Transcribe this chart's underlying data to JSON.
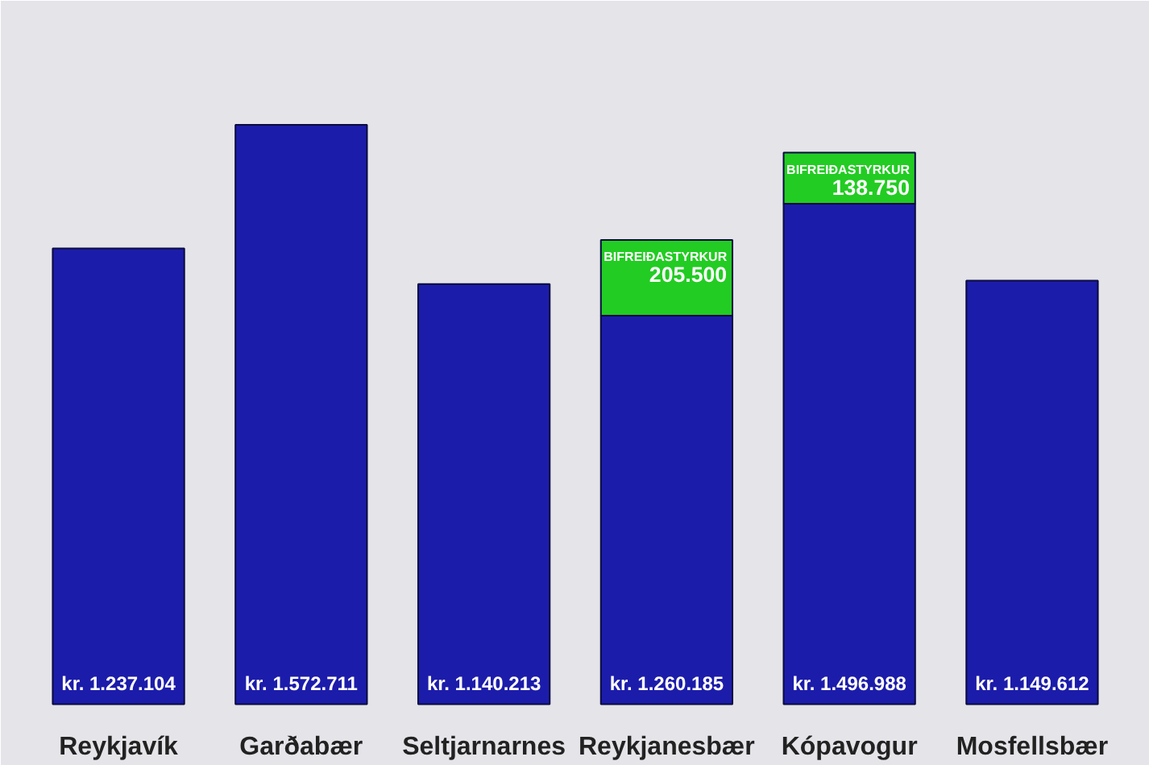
{
  "chart_data": {
    "type": "bar",
    "categories": [
      "Reykjavík",
      "Garðabær",
      "Seltjarnarnes",
      "Reykjanesbær",
      "Kópavogur",
      "Mosfellsbær"
    ],
    "series": [
      {
        "color": "#1c1caa",
        "values": [
          1237104,
          1572711,
          1140213,
          1054685,
          1358238,
          1149612
        ]
      },
      {
        "name": "BIFREIÐASTYRKUR",
        "color": "#22cc22",
        "values": [
          null,
          null,
          null,
          205500,
          138750,
          null
        ],
        "value_labels": [
          null,
          null,
          null,
          "205.500",
          "138.750",
          null
        ]
      }
    ],
    "totals": [
      "kr. 1.237.104",
      "kr. 1.572.711",
      "kr. 1.140.213",
      "kr. 1.260.185",
      "kr. 1.496.988",
      "kr. 1.149.612"
    ],
    "stacked": true
  }
}
